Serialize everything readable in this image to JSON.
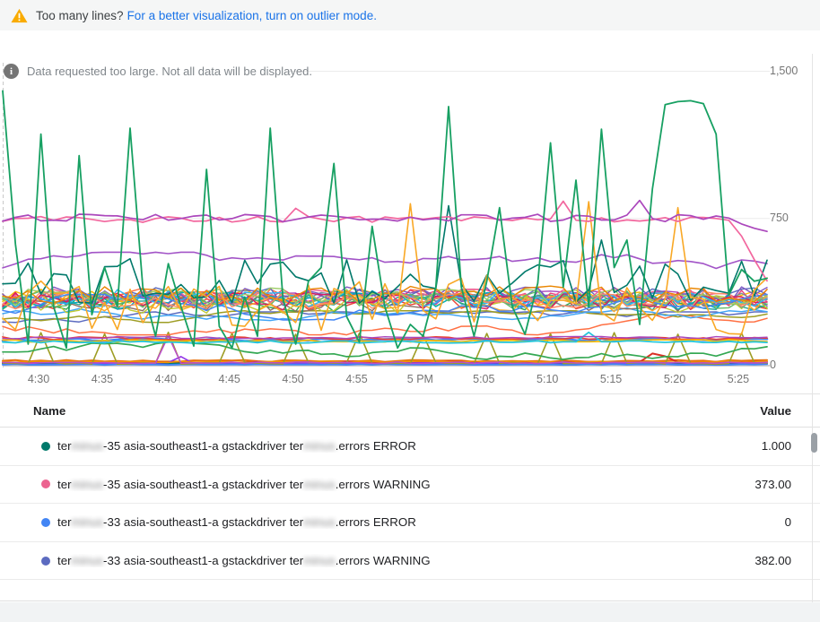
{
  "banner": {
    "warning_text": "Too many lines?",
    "link_text": "For a better visualization, turn on outlier mode.",
    "warning_icon": "warning-triangle-icon",
    "warning_color": "#F9AB00",
    "link_color": "#1a73e8"
  },
  "chart_notice": {
    "icon": "info-circle-icon",
    "glyph": "i",
    "text": "Data requested too large. Not all data will be displayed."
  },
  "chart_data": {
    "type": "line",
    "title": "",
    "xlabel": "",
    "ylabel": "",
    "x_tick_labels": [
      "4:30",
      "4:35",
      "4:40",
      "4:45",
      "4:50",
      "4:55",
      "5 PM",
      "5:05",
      "5:10",
      "5:15",
      "5:20",
      "5:25"
    ],
    "y_ticks": [
      {
        "label": "1,500",
        "value": 1500
      },
      {
        "label": "750",
        "value": 750
      },
      {
        "label": "0",
        "value": 0
      }
    ],
    "ylim": [
      0,
      1500
    ],
    "grid": "horizontal-only",
    "legend_position": "table-below",
    "n_points": 61,
    "x_span_description": "one minute per point, approx 4:27 PM to 5:27 PM",
    "series": [
      {
        "color": "#E8710A",
        "base": 24,
        "amp": 5,
        "seed": 11,
        "w": 2
      },
      {
        "color": "#D93025",
        "base": 17,
        "amp": 4,
        "seed": 12,
        "w": 2,
        "peaks": [
          [
            51,
            62
          ],
          [
            52,
            48
          ]
        ]
      },
      {
        "name": "terminus-35 asia-southeast1-a gstackdriver terminus.errors ERROR",
        "color": "#00796B",
        "base": 10,
        "amp": 3,
        "seed": 13,
        "w": 2
      },
      {
        "color": "#9334E6",
        "base": 13,
        "amp": 3,
        "seed": 14,
        "w": 1.6,
        "peaks": [
          [
            14,
            46
          ]
        ]
      },
      {
        "name": "terminus-33 asia-southeast1-a gstackdriver terminus.errors ERROR",
        "color": "#4285F4",
        "base": 6,
        "amp": 2,
        "seed": 15,
        "w": 2
      },
      {
        "color": "#F29900",
        "base": 20,
        "amp": 4,
        "seed": 16,
        "w": 1.4
      },
      {
        "color": "#9E9D24",
        "base": 12,
        "amp": 5,
        "seed": 17,
        "w": 1.6,
        "peaks": [
          [
            3,
            168
          ],
          [
            8,
            162
          ],
          [
            13,
            170
          ],
          [
            18,
            165
          ],
          [
            23,
            160
          ],
          [
            28,
            166
          ],
          [
            33,
            158
          ],
          [
            38,
            164
          ],
          [
            43,
            162
          ],
          [
            48,
            168
          ],
          [
            53,
            160
          ],
          [
            58,
            166
          ]
        ]
      },
      {
        "color": "#BA4FC8",
        "base": 15,
        "amp": 4,
        "seed": 18,
        "w": 1.6,
        "peaks": [
          [
            13,
            152
          ]
        ]
      },
      {
        "color": "#34A853",
        "base": 78,
        "amp": 46,
        "seed": 19,
        "w": 1.7,
        "mode": "walk"
      },
      {
        "color": "#4285F4",
        "base": 132,
        "amp": 7,
        "seed": 20,
        "w": 2.6
      },
      {
        "color": "#EA4335",
        "base": 139,
        "amp": 8,
        "seed": 21,
        "w": 1.7
      },
      {
        "color": "#FBBC04",
        "base": 127,
        "amp": 6,
        "seed": 22,
        "w": 1.7
      },
      {
        "color": "#26C6DA",
        "base": 121,
        "amp": 6,
        "seed": 23,
        "w": 1.8,
        "peaks": [
          [
            46,
            170
          ]
        ]
      },
      {
        "color": "#AB47BC",
        "base": 143,
        "amp": 6,
        "seed": 24,
        "w": 1.4
      },
      {
        "color": "#5C6BC0",
        "base": 232,
        "amp": 42,
        "seed": 25,
        "w": 1.5,
        "mode": "walk"
      },
      {
        "color": "#FF7043",
        "base": 212,
        "amp": 55,
        "seed": 26,
        "w": 1.5,
        "mode": "walk"
      },
      {
        "color": "#9E9D24",
        "base": 250,
        "amp": 30,
        "seed": 27,
        "w": 1.5,
        "mode": "walk"
      },
      {
        "color": "#42A5F5",
        "base": 268,
        "amp": 38,
        "seed": 28,
        "w": 1.5,
        "mode": "walk"
      },
      {
        "color": "#EA4335",
        "base": 330,
        "amp": 45,
        "seed": 31,
        "w": 1.4
      },
      {
        "color": "#FBBC04",
        "base": 346,
        "amp": 45,
        "seed": 32,
        "w": 1.4
      },
      {
        "color": "#34A853",
        "base": 318,
        "amp": 45,
        "seed": 33,
        "w": 1.4
      },
      {
        "color": "#FF7043",
        "base": 352,
        "amp": 45,
        "seed": 34,
        "w": 1.4
      },
      {
        "color": "#AB47BC",
        "base": 338,
        "amp": 45,
        "seed": 35,
        "w": 1.4
      },
      {
        "color": "#26A69A",
        "base": 326,
        "amp": 45,
        "seed": 36,
        "w": 1.4
      },
      {
        "color": "#EC407A",
        "base": 345,
        "amp": 45,
        "seed": 37,
        "w": 1.4
      },
      {
        "name": "terminus-33 asia-southeast1-a gstackdriver terminus.errors WARNING",
        "color": "#5C6BC0",
        "base": 352,
        "amp": 45,
        "seed": 38,
        "w": 1.4
      },
      {
        "color": "#8D6E63",
        "base": 322,
        "amp": 45,
        "seed": 39,
        "w": 1.4
      },
      {
        "color": "#78909C",
        "base": 340,
        "amp": 45,
        "seed": 40,
        "w": 1.4
      },
      {
        "color": "#C0CA33",
        "base": 312,
        "amp": 45,
        "seed": 41,
        "w": 1.4
      },
      {
        "name": "terminus-35 asia-southeast1-a gstackdriver terminus.errors WARNING",
        "color": "#F06292",
        "base": 348,
        "amp": 45,
        "seed": 42,
        "w": 1.4
      },
      {
        "color": "#00ACC1",
        "base": 331,
        "amp": 45,
        "seed": 43,
        "w": 1.4
      },
      {
        "color": "#7E57C2",
        "base": 357,
        "amp": 45,
        "seed": 44,
        "w": 1.4
      },
      {
        "color": "#FFA726",
        "base": 320,
        "amp": 45,
        "seed": 45,
        "w": 1.4
      },
      {
        "color": "#66BB6A",
        "base": 336,
        "amp": 45,
        "seed": 46,
        "w": 1.4
      },
      {
        "color": "#D81B60",
        "base": 328,
        "amp": 45,
        "seed": 47,
        "w": 1.4
      },
      {
        "color": "#29B6F6",
        "base": 343,
        "amp": 45,
        "seed": 48,
        "w": 1.4
      },
      {
        "color": "#FF8A65",
        "base": 334,
        "amp": 45,
        "seed": 49,
        "w": 1.4
      },
      {
        "color": "#9CCC65",
        "base": 351,
        "amp": 45,
        "seed": 50,
        "w": 1.4
      },
      {
        "color": "#4285F4",
        "base": 298,
        "amp": 65,
        "seed": 51,
        "w": 1.5,
        "mode": "walk"
      },
      {
        "color": "#EA8600",
        "base": 362,
        "amp": 45,
        "seed": 52,
        "w": 1.4
      },
      {
        "color": "#A254C7",
        "base": 520,
        "amp": 58,
        "seed": 55,
        "w": 1.6,
        "mode": "walk"
      },
      {
        "color": "#00796B",
        "base": 430,
        "amp": 115,
        "seed": 56,
        "w": 1.6,
        "peaks": [
          [
            35,
            815
          ],
          [
            47,
            640
          ]
        ]
      },
      {
        "color": "#F9A825",
        "base": 310,
        "amp": 150,
        "seed": 57,
        "w": 1.6,
        "peaks": [
          [
            32,
            825
          ],
          [
            46,
            835
          ],
          [
            53,
            805
          ]
        ]
      },
      {
        "color": "#F2679E",
        "base": 746,
        "amp": 16,
        "seed": 60,
        "w": 1.7,
        "peaks": [
          [
            23,
            802
          ],
          [
            44,
            838
          ]
        ],
        "tail": [
          660,
          540,
          432
        ]
      },
      {
        "color": "#AB47BC",
        "base": 753,
        "amp": 20,
        "seed": 61,
        "w": 1.7,
        "peaks": [
          [
            50,
            842
          ]
        ],
        "tail": [
          722,
          700,
          684
        ]
      },
      {
        "color": "#17A062",
        "w": 1.8,
        "points": [
          1400,
          620,
          110,
          1180,
          300,
          90,
          1070,
          260,
          500,
          300,
          1210,
          400,
          150,
          520,
          300,
          100,
          1000,
          200,
          90,
          350,
          150,
          1210,
          340,
          110,
          430,
          500,
          1030,
          250,
          120,
          710,
          300,
          90,
          210,
          150,
          400,
          1320,
          400,
          150,
          430,
          805,
          300,
          160,
          420,
          1135,
          400,
          945,
          300,
          1205,
          500,
          640,
          210,
          900,
          1330,
          1345,
          1350,
          1335,
          1180,
          360,
          490,
          430,
          445
        ]
      }
    ]
  },
  "table": {
    "columns": {
      "name": "Name",
      "value": "Value"
    },
    "rows": [
      {
        "dot_color": "#00796B",
        "name_parts": [
          {
            "text": "ter"
          },
          {
            "text": "minus",
            "redacted": true
          },
          {
            "text": "-35 asia-southeast1-a gstackdriver ter"
          },
          {
            "text": "minus",
            "redacted": true
          },
          {
            "text": ".errors ERROR"
          }
        ],
        "value": "1.000"
      },
      {
        "dot_color": "#EC6390",
        "name_parts": [
          {
            "text": "ter"
          },
          {
            "text": "minus",
            "redacted": true
          },
          {
            "text": "-35 asia-southeast1-a gstackdriver ter"
          },
          {
            "text": "minus",
            "redacted": true
          },
          {
            "text": ".errors WARNING"
          }
        ],
        "value": "373.00"
      },
      {
        "dot_color": "#4285F4",
        "name_parts": [
          {
            "text": "ter"
          },
          {
            "text": "minus",
            "redacted": true
          },
          {
            "text": "-33 asia-southeast1-a gstackdriver ter"
          },
          {
            "text": "minus",
            "redacted": true
          },
          {
            "text": ".errors ERROR"
          }
        ],
        "value": "0"
      },
      {
        "dot_color": "#5C6BC0",
        "name_parts": [
          {
            "text": "ter"
          },
          {
            "text": "minus",
            "redacted": true
          },
          {
            "text": "-33 asia-southeast1-a gstackdriver ter"
          },
          {
            "text": "minus",
            "redacted": true
          },
          {
            "text": ".errors WARNING"
          }
        ],
        "value": "382.00"
      }
    ]
  }
}
